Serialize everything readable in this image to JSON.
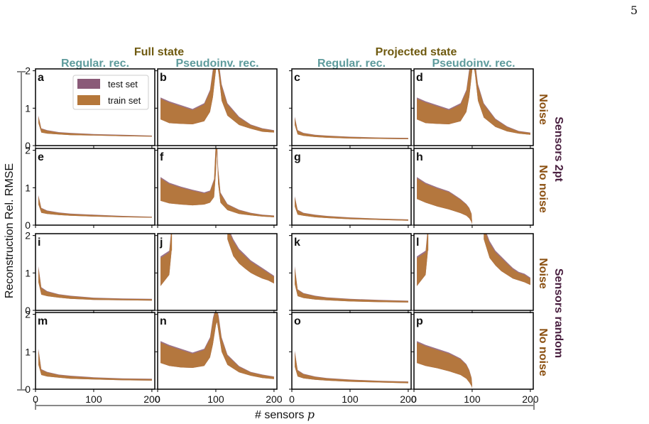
{
  "page_number": "5",
  "labels": {
    "group_full": "Full state",
    "group_projected": "Projected state",
    "col_regular": "Regular. rec.",
    "col_pseudo": "Pseudoinv. rec.",
    "row_noise": "Noise",
    "row_no_noise": "No noise",
    "sensors_2pt": "Sensors 2pt",
    "sensors_random": "Sensors random",
    "ylabel": "Reconstruction Rel. RMSE",
    "xlabel": "# sensors ",
    "xlabel_var": "p"
  },
  "legend": {
    "test": "test set",
    "train": "train set"
  },
  "colors": {
    "test": "#8a5a78",
    "train": "#b5773a",
    "group": "#6f5a10",
    "column": "#5e9b9c",
    "row": "#8a4f10",
    "sensor": "#4a2040"
  },
  "chart_data": [
    {
      "id": "a",
      "type": "area",
      "kind": "reg",
      "x": [
        5,
        10,
        20,
        40,
        60,
        100,
        150,
        200
      ],
      "upper": [
        0.78,
        0.45,
        0.4,
        0.35,
        0.33,
        0.3,
        0.28,
        0.26
      ],
      "lower": [
        0.6,
        0.35,
        0.32,
        0.3,
        0.28,
        0.27,
        0.25,
        0.24
      ],
      "xlim": [
        0,
        205
      ],
      "ylim": [
        0,
        2.05
      ],
      "xticks": [
        "0",
        "100",
        "200"
      ],
      "yticks": [
        "0",
        "1",
        "2"
      ]
    },
    {
      "id": "b",
      "type": "area",
      "kind": "pseudo",
      "x": [
        5,
        20,
        40,
        60,
        80,
        90,
        95,
        100,
        102,
        105,
        110,
        120,
        140,
        160,
        180,
        200
      ],
      "upper": [
        1.25,
        1.15,
        1.05,
        0.95,
        1.1,
        1.45,
        2.0,
        2.2,
        2.2,
        2.2,
        1.6,
        1.1,
        0.75,
        0.55,
        0.45,
        0.4
      ],
      "lower": [
        0.7,
        0.6,
        0.58,
        0.57,
        0.65,
        0.9,
        1.3,
        2.0,
        2.2,
        1.9,
        1.2,
        0.8,
        0.55,
        0.45,
        0.37,
        0.35
      ],
      "xlim": [
        0,
        205
      ],
      "ylim": [
        0,
        2.05
      ],
      "xticks": [
        "0",
        "100",
        "200"
      ],
      "yticks": [
        "0",
        "1",
        "2"
      ]
    },
    {
      "id": "c",
      "type": "area",
      "kind": "reg",
      "x": [
        5,
        10,
        20,
        40,
        60,
        100,
        150,
        200
      ],
      "upper": [
        0.75,
        0.4,
        0.33,
        0.28,
        0.26,
        0.23,
        0.21,
        0.2
      ],
      "lower": [
        0.55,
        0.3,
        0.26,
        0.23,
        0.21,
        0.19,
        0.18,
        0.17
      ],
      "xlim": [
        0,
        205
      ],
      "ylim": [
        0,
        2.05
      ],
      "xticks": [
        "0",
        "100",
        "200"
      ],
      "yticks": [
        "0",
        "1",
        "2"
      ]
    },
    {
      "id": "d",
      "type": "area",
      "kind": "pseudo",
      "x": [
        5,
        20,
        40,
        60,
        80,
        90,
        95,
        100,
        102,
        105,
        110,
        120,
        140,
        160,
        180,
        200
      ],
      "upper": [
        1.25,
        1.15,
        1.05,
        0.95,
        1.1,
        1.45,
        2.0,
        2.2,
        2.2,
        2.2,
        1.6,
        1.1,
        0.7,
        0.5,
        0.38,
        0.34
      ],
      "lower": [
        0.7,
        0.6,
        0.58,
        0.57,
        0.65,
        0.9,
        1.3,
        2.0,
        2.2,
        1.9,
        1.2,
        0.75,
        0.5,
        0.38,
        0.32,
        0.29
      ],
      "xlim": [
        0,
        205
      ],
      "ylim": [
        0,
        2.05
      ],
      "xticks": [
        "0",
        "100",
        "200"
      ],
      "yticks": [
        "0",
        "1",
        "2"
      ]
    },
    {
      "id": "e",
      "type": "area",
      "kind": "reg",
      "x": [
        5,
        10,
        20,
        40,
        60,
        100,
        150,
        200
      ],
      "upper": [
        0.78,
        0.45,
        0.38,
        0.33,
        0.3,
        0.27,
        0.24,
        0.22
      ],
      "lower": [
        0.55,
        0.33,
        0.3,
        0.27,
        0.25,
        0.23,
        0.21,
        0.2
      ],
      "xlim": [
        0,
        205
      ],
      "ylim": [
        0,
        2.05
      ],
      "xticks": [
        "0",
        "100",
        "200"
      ],
      "yticks": [
        "0",
        "1",
        "2"
      ]
    },
    {
      "id": "f",
      "type": "area",
      "kind": "pseudo",
      "x": [
        5,
        20,
        40,
        60,
        80,
        90,
        97,
        100,
        102,
        104,
        108,
        120,
        140,
        160,
        180,
        200
      ],
      "upper": [
        1.25,
        1.1,
        1.0,
        0.92,
        0.85,
        0.9,
        1.2,
        2.2,
        2.2,
        1.5,
        0.85,
        0.55,
        0.4,
        0.32,
        0.27,
        0.25
      ],
      "lower": [
        0.65,
        0.58,
        0.55,
        0.53,
        0.55,
        0.6,
        0.75,
        1.4,
        2.0,
        1.1,
        0.6,
        0.4,
        0.3,
        0.26,
        0.23,
        0.21
      ],
      "xlim": [
        0,
        205
      ],
      "ylim": [
        0,
        2.05
      ],
      "xticks": [
        "0",
        "100",
        "200"
      ],
      "yticks": [
        "0",
        "1",
        "2"
      ]
    },
    {
      "id": "g",
      "type": "area",
      "kind": "reg",
      "x": [
        5,
        10,
        20,
        40,
        60,
        100,
        150,
        200
      ],
      "upper": [
        0.75,
        0.4,
        0.32,
        0.27,
        0.24,
        0.2,
        0.17,
        0.15
      ],
      "lower": [
        0.5,
        0.28,
        0.25,
        0.21,
        0.19,
        0.16,
        0.14,
        0.12
      ],
      "xlim": [
        0,
        205
      ],
      "ylim": [
        0,
        2.05
      ],
      "xticks": [
        "0",
        "100",
        "200"
      ],
      "yticks": [
        "0",
        "1",
        "2"
      ]
    },
    {
      "id": "h",
      "type": "area",
      "kind": "pseudo",
      "x": [
        5,
        20,
        40,
        60,
        80,
        90,
        95,
        99,
        100
      ],
      "upper": [
        1.25,
        1.1,
        0.98,
        0.88,
        0.68,
        0.55,
        0.45,
        0.3,
        0.05
      ],
      "lower": [
        0.7,
        0.6,
        0.5,
        0.42,
        0.32,
        0.25,
        0.18,
        0.08,
        0.02
      ],
      "xlim": [
        0,
        205
      ],
      "ylim": [
        0,
        2.05
      ],
      "xticks": [
        "0",
        "100",
        "200"
      ],
      "yticks": [
        "0",
        "1",
        "2"
      ]
    },
    {
      "id": "i",
      "type": "area",
      "kind": "reg",
      "x": [
        5,
        10,
        20,
        40,
        60,
        100,
        150,
        200
      ],
      "upper": [
        1.15,
        0.6,
        0.5,
        0.42,
        0.38,
        0.33,
        0.31,
        0.3
      ],
      "lower": [
        0.75,
        0.42,
        0.38,
        0.34,
        0.31,
        0.28,
        0.27,
        0.26
      ],
      "xlim": [
        0,
        205
      ],
      "ylim": [
        0,
        2.05
      ],
      "xticks": [
        "0",
        "100",
        "200"
      ],
      "yticks": [
        "0",
        "1",
        "2"
      ]
    },
    {
      "id": "j",
      "type": "area",
      "kind": "pseudo",
      "breaks": [
        [
          24,
          120
        ]
      ],
      "x": [
        5,
        10,
        15,
        20,
        24,
        120,
        130,
        140,
        150,
        160,
        170,
        180,
        190,
        200
      ],
      "upper": [
        1.4,
        1.45,
        1.5,
        1.55,
        2.2,
        2.2,
        1.85,
        1.6,
        1.45,
        1.3,
        1.2,
        1.1,
        1.0,
        0.9
      ],
      "lower": [
        0.65,
        0.75,
        0.85,
        0.95,
        1.6,
        1.9,
        1.45,
        1.25,
        1.12,
        1.0,
        0.92,
        0.85,
        0.8,
        0.72
      ],
      "xlim": [
        0,
        205
      ],
      "ylim": [
        0,
        2.05
      ],
      "xticks": [
        "0",
        "100",
        "200"
      ],
      "yticks": [
        "0",
        "1",
        "2"
      ]
    },
    {
      "id": "k",
      "type": "area",
      "kind": "reg",
      "x": [
        5,
        10,
        20,
        40,
        60,
        100,
        150,
        200
      ],
      "upper": [
        1.15,
        0.55,
        0.45,
        0.38,
        0.34,
        0.3,
        0.27,
        0.25
      ],
      "lower": [
        0.7,
        0.38,
        0.33,
        0.29,
        0.27,
        0.24,
        0.22,
        0.21
      ],
      "xlim": [
        0,
        205
      ],
      "ylim": [
        0,
        2.05
      ],
      "xticks": [
        "0",
        "100",
        "200"
      ],
      "yticks": [
        "0",
        "1",
        "2"
      ]
    },
    {
      "id": "l",
      "type": "area",
      "kind": "pseudo",
      "breaks": [
        [
          24,
          120
        ]
      ],
      "x": [
        5,
        10,
        15,
        20,
        24,
        120,
        130,
        140,
        150,
        160,
        170,
        180,
        190,
        200
      ],
      "upper": [
        1.4,
        1.45,
        1.5,
        1.55,
        2.2,
        2.2,
        1.8,
        1.55,
        1.4,
        1.25,
        1.1,
        1.0,
        0.95,
        0.85
      ],
      "lower": [
        0.65,
        0.75,
        0.85,
        0.95,
        1.6,
        1.9,
        1.4,
        1.2,
        1.05,
        0.95,
        0.85,
        0.8,
        0.75,
        0.68
      ],
      "xlim": [
        0,
        205
      ],
      "ylim": [
        0,
        2.05
      ],
      "xticks": [
        "0",
        "100",
        "200"
      ],
      "yticks": [
        "0",
        "1",
        "2"
      ]
    },
    {
      "id": "m",
      "type": "area",
      "kind": "reg",
      "x": [
        5,
        10,
        20,
        40,
        60,
        100,
        150,
        200
      ],
      "upper": [
        1.05,
        0.52,
        0.45,
        0.38,
        0.35,
        0.31,
        0.28,
        0.27
      ],
      "lower": [
        0.65,
        0.38,
        0.34,
        0.31,
        0.28,
        0.26,
        0.24,
        0.23
      ],
      "xlim": [
        0,
        205
      ],
      "ylim": [
        0,
        2.05
      ],
      "xticks": [
        "0",
        "100",
        "200"
      ],
      "yticks": [
        "0",
        "1",
        "2"
      ]
    },
    {
      "id": "n",
      "type": "area",
      "kind": "pseudo",
      "x": [
        5,
        20,
        40,
        60,
        80,
        90,
        95,
        100,
        102,
        105,
        110,
        120,
        140,
        160,
        180,
        200
      ],
      "upper": [
        1.25,
        1.15,
        1.05,
        0.95,
        1.05,
        1.35,
        1.85,
        2.15,
        2.1,
        1.9,
        1.35,
        0.9,
        0.6,
        0.45,
        0.38,
        0.33
      ],
      "lower": [
        0.7,
        0.62,
        0.58,
        0.57,
        0.62,
        0.85,
        1.2,
        1.7,
        1.8,
        1.5,
        1.0,
        0.65,
        0.45,
        0.36,
        0.3,
        0.27
      ],
      "xlim": [
        0,
        205
      ],
      "ylim": [
        0,
        2.05
      ],
      "xticks": [
        "0",
        "100",
        "200"
      ],
      "yticks": [
        "0",
        "1",
        "2"
      ]
    },
    {
      "id": "o",
      "type": "area",
      "kind": "reg",
      "x": [
        5,
        10,
        20,
        40,
        60,
        100,
        150,
        200
      ],
      "upper": [
        1.0,
        0.5,
        0.4,
        0.33,
        0.29,
        0.25,
        0.22,
        0.2
      ],
      "lower": [
        0.6,
        0.34,
        0.29,
        0.25,
        0.23,
        0.2,
        0.18,
        0.16
      ],
      "xlim": [
        0,
        205
      ],
      "ylim": [
        0,
        2.05
      ],
      "xticks": [
        "0",
        "100",
        "200"
      ],
      "yticks": [
        "0",
        "1",
        "2"
      ]
    },
    {
      "id": "p",
      "type": "area",
      "kind": "pseudo",
      "x": [
        5,
        20,
        40,
        60,
        80,
        90,
        95,
        99,
        100
      ],
      "upper": [
        1.25,
        1.15,
        1.05,
        0.95,
        0.8,
        0.65,
        0.5,
        0.3,
        0.1
      ],
      "lower": [
        0.7,
        0.62,
        0.56,
        0.48,
        0.38,
        0.28,
        0.18,
        0.08,
        0.03
      ],
      "xlim": [
        0,
        205
      ],
      "ylim": [
        0,
        2.05
      ],
      "xticks": [
        "0",
        "100",
        "200"
      ],
      "yticks": [
        "0",
        "1",
        "2"
      ]
    }
  ]
}
